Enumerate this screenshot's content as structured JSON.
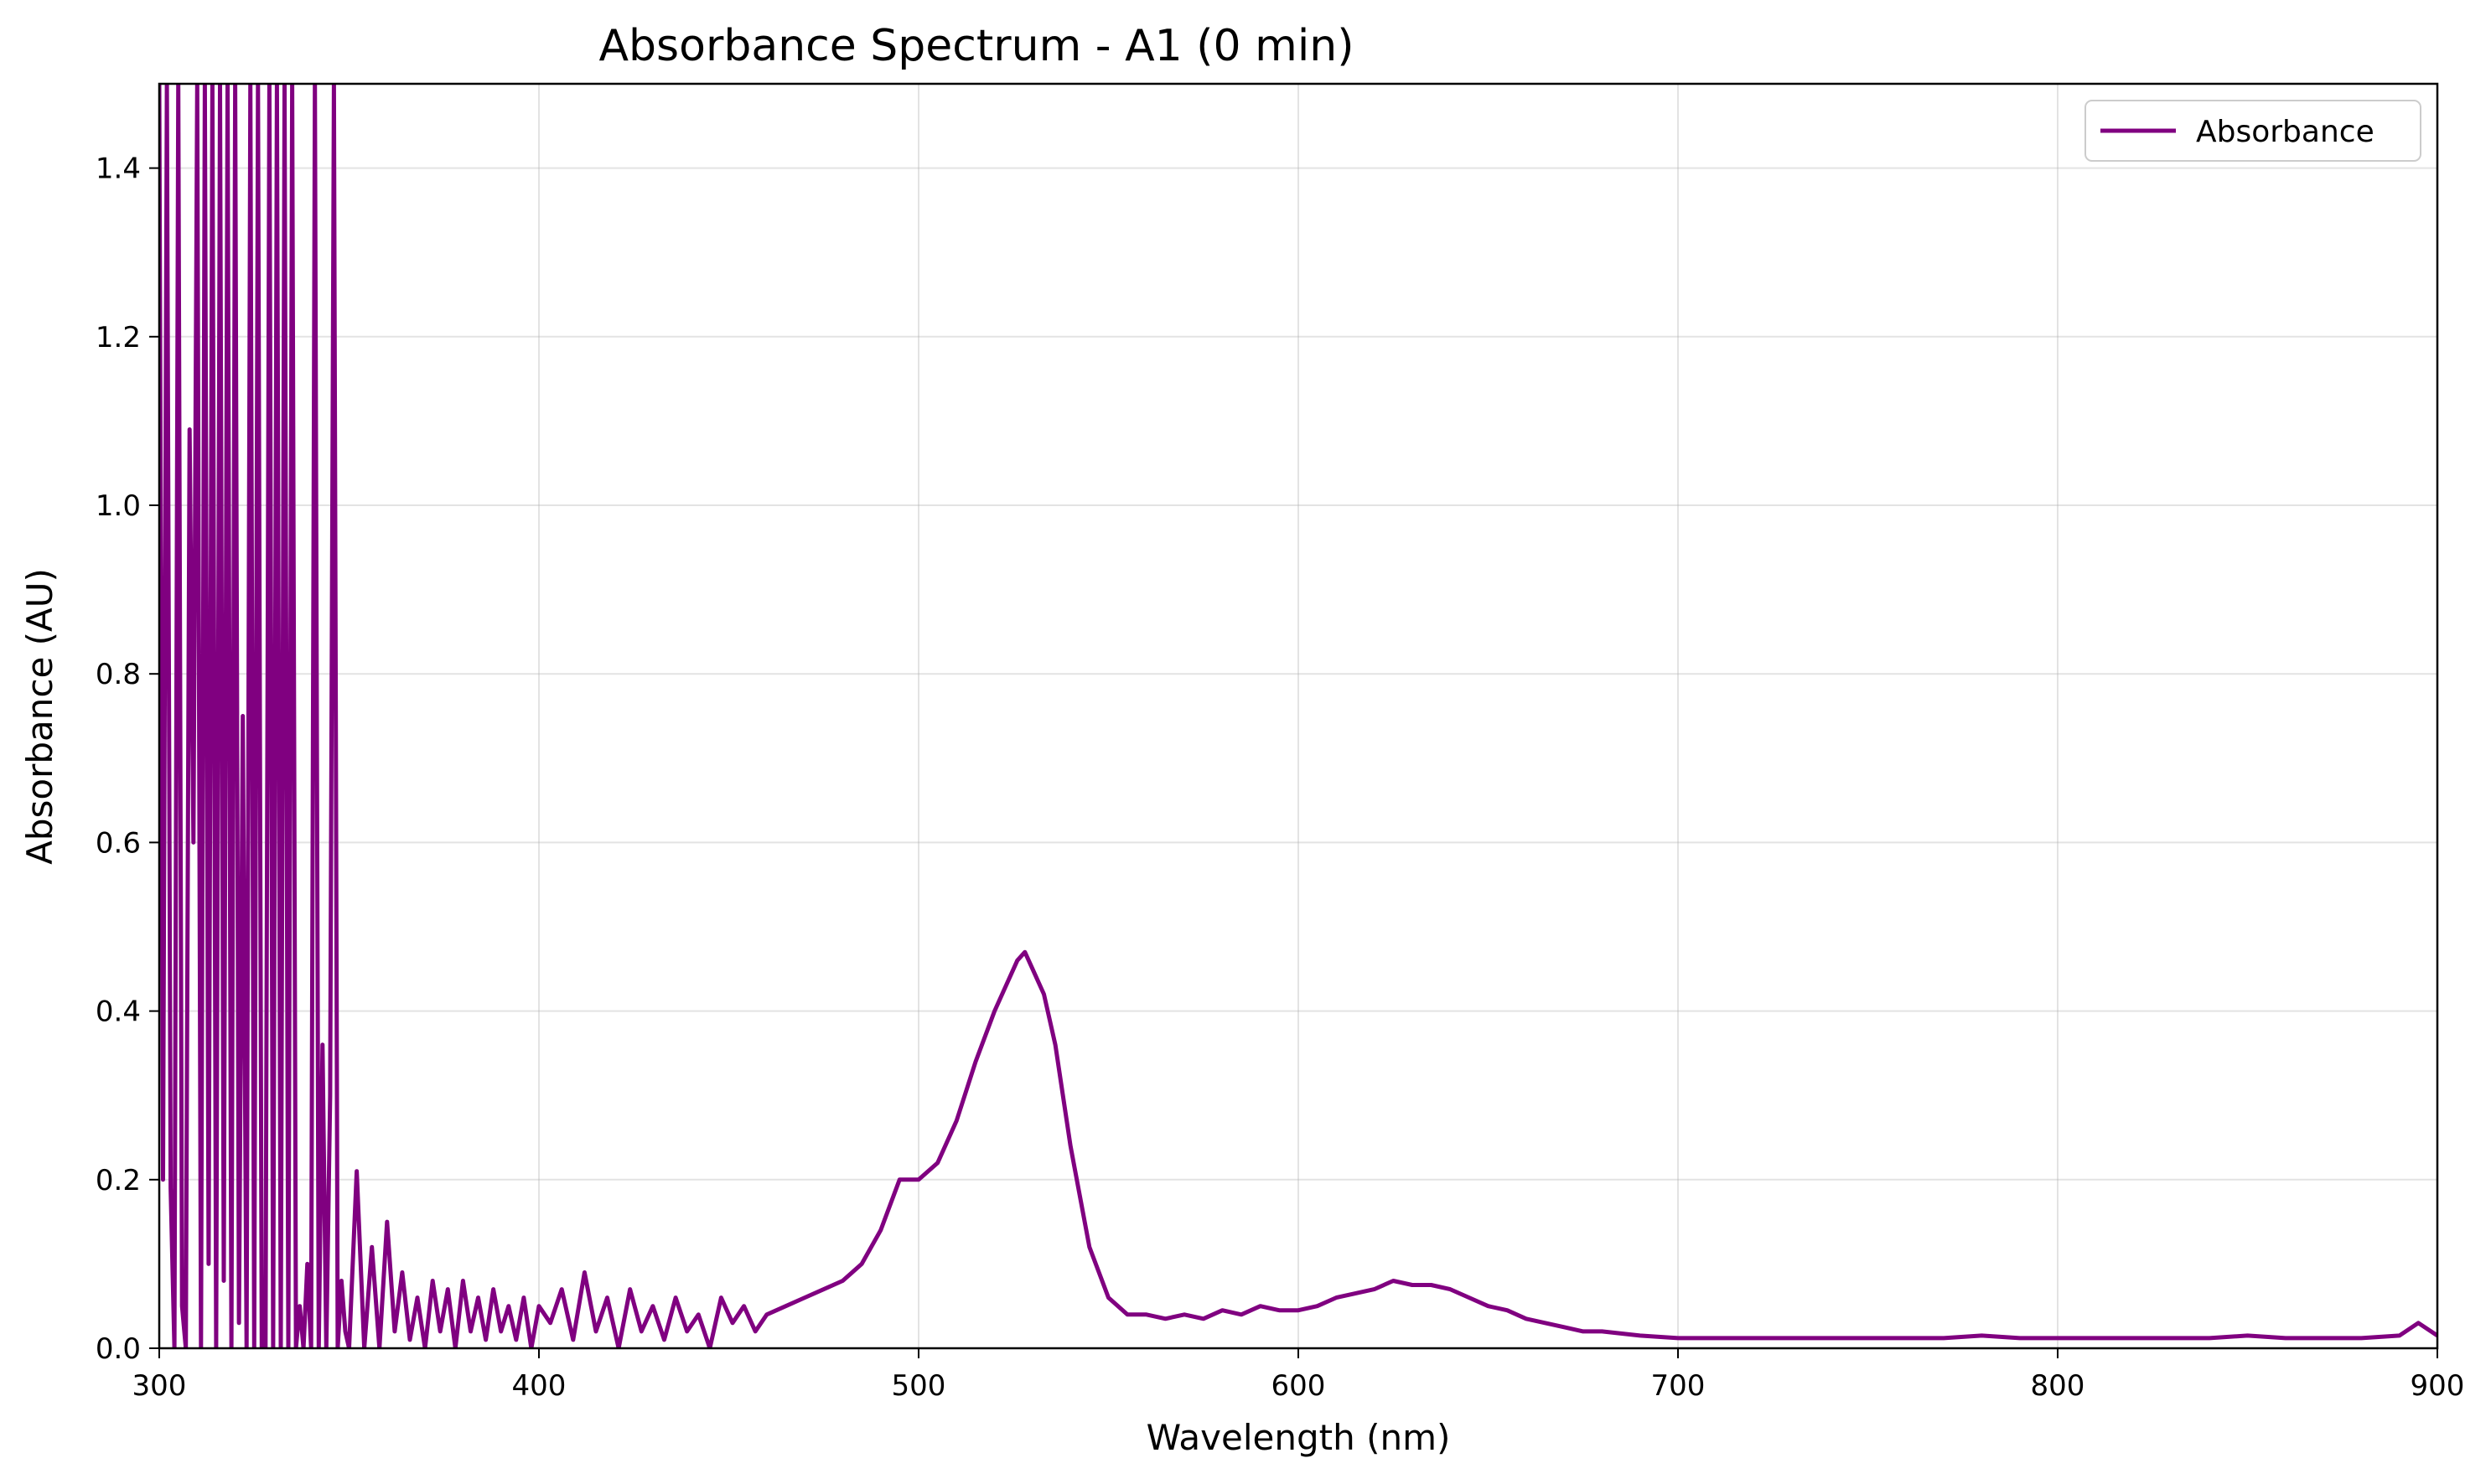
{
  "chart_data": {
    "type": "line",
    "title": "Absorbance Spectrum - A1 (0 min)",
    "xlabel": "Wavelength (nm)",
    "ylabel": "Absorbance (AU)",
    "xlim": [
      300,
      900
    ],
    "ylim": [
      0,
      1.5
    ],
    "xticks": [
      300,
      400,
      500,
      600,
      700,
      800,
      900
    ],
    "yticks": [
      0.0,
      0.2,
      0.4,
      0.6,
      0.8,
      1.0,
      1.2,
      1.4
    ],
    "ytick_labels": [
      "0.0",
      "0.2",
      "0.4",
      "0.6",
      "0.8",
      "1.0",
      "1.2",
      "1.4"
    ],
    "grid": true,
    "legend": {
      "position": "top-right",
      "entries": [
        "Absorbance"
      ]
    },
    "series": [
      {
        "name": "Absorbance",
        "color": "#800080",
        "x": [
          300,
          301,
          302,
          303,
          304,
          305,
          306,
          307,
          308,
          309,
          310,
          311,
          312,
          313,
          314,
          315,
          316,
          317,
          318,
          319,
          320,
          321,
          322,
          323,
          324,
          325,
          326,
          327,
          328,
          329,
          330,
          331,
          332,
          333,
          334,
          335,
          336,
          337,
          338,
          339,
          340,
          341,
          342,
          343,
          344,
          345,
          346,
          347,
          348,
          349,
          350,
          352,
          354,
          356,
          358,
          360,
          362,
          364,
          366,
          368,
          370,
          372,
          374,
          376,
          378,
          380,
          382,
          384,
          386,
          388,
          390,
          392,
          394,
          396,
          398,
          400,
          403,
          406,
          409,
          412,
          415,
          418,
          421,
          424,
          427,
          430,
          433,
          436,
          439,
          442,
          445,
          448,
          451,
          454,
          457,
          460,
          465,
          470,
          475,
          480,
          485,
          490,
          495,
          500,
          505,
          510,
          515,
          520,
          523,
          526,
          528,
          530,
          533,
          536,
          540,
          545,
          550,
          555,
          560,
          565,
          570,
          575,
          580,
          585,
          590,
          595,
          600,
          605,
          610,
          615,
          620,
          625,
          630,
          635,
          640,
          645,
          650,
          655,
          660,
          665,
          670,
          675,
          680,
          690,
          700,
          710,
          720,
          730,
          740,
          750,
          760,
          770,
          780,
          790,
          800,
          810,
          820,
          830,
          840,
          850,
          860,
          870,
          880,
          890,
          895,
          900
        ],
        "y": [
          1.5,
          0.2,
          1.5,
          0.19,
          0.0,
          1.5,
          0.05,
          0.0,
          1.09,
          0.6,
          1.5,
          0.0,
          1.5,
          0.1,
          1.5,
          0.0,
          1.5,
          0.08,
          1.5,
          0.0,
          1.5,
          0.03,
          0.75,
          0.0,
          1.5,
          0.0,
          1.5,
          0.0,
          0.0,
          1.5,
          0.0,
          1.5,
          0.0,
          1.5,
          0.0,
          1.5,
          0.0,
          0.05,
          0.0,
          0.1,
          0.0,
          1.5,
          0.0,
          0.36,
          0.0,
          0.3,
          1.5,
          0.0,
          0.08,
          0.02,
          0.0,
          0.21,
          0.0,
          0.12,
          0.0,
          0.15,
          0.02,
          0.09,
          0.01,
          0.06,
          0.0,
          0.08,
          0.02,
          0.07,
          0.0,
          0.08,
          0.02,
          0.06,
          0.01,
          0.07,
          0.02,
          0.05,
          0.01,
          0.06,
          0.0,
          0.05,
          0.03,
          0.07,
          0.01,
          0.09,
          0.02,
          0.06,
          0.0,
          0.07,
          0.02,
          0.05,
          0.01,
          0.06,
          0.02,
          0.04,
          0.0,
          0.06,
          0.03,
          0.05,
          0.02,
          0.04,
          0.05,
          0.06,
          0.07,
          0.08,
          0.1,
          0.14,
          0.2,
          0.2,
          0.22,
          0.27,
          0.34,
          0.4,
          0.43,
          0.46,
          0.47,
          0.45,
          0.42,
          0.36,
          0.24,
          0.12,
          0.06,
          0.04,
          0.04,
          0.035,
          0.04,
          0.035,
          0.045,
          0.04,
          0.05,
          0.045,
          0.045,
          0.05,
          0.06,
          0.065,
          0.07,
          0.08,
          0.075,
          0.075,
          0.07,
          0.06,
          0.05,
          0.045,
          0.035,
          0.03,
          0.025,
          0.02,
          0.02,
          0.015,
          0.012,
          0.012,
          0.012,
          0.012,
          0.012,
          0.012,
          0.012,
          0.012,
          0.015,
          0.012,
          0.012,
          0.012,
          0.012,
          0.012,
          0.012,
          0.015,
          0.012,
          0.012,
          0.012,
          0.015,
          0.03,
          0.015
        ]
      }
    ]
  }
}
